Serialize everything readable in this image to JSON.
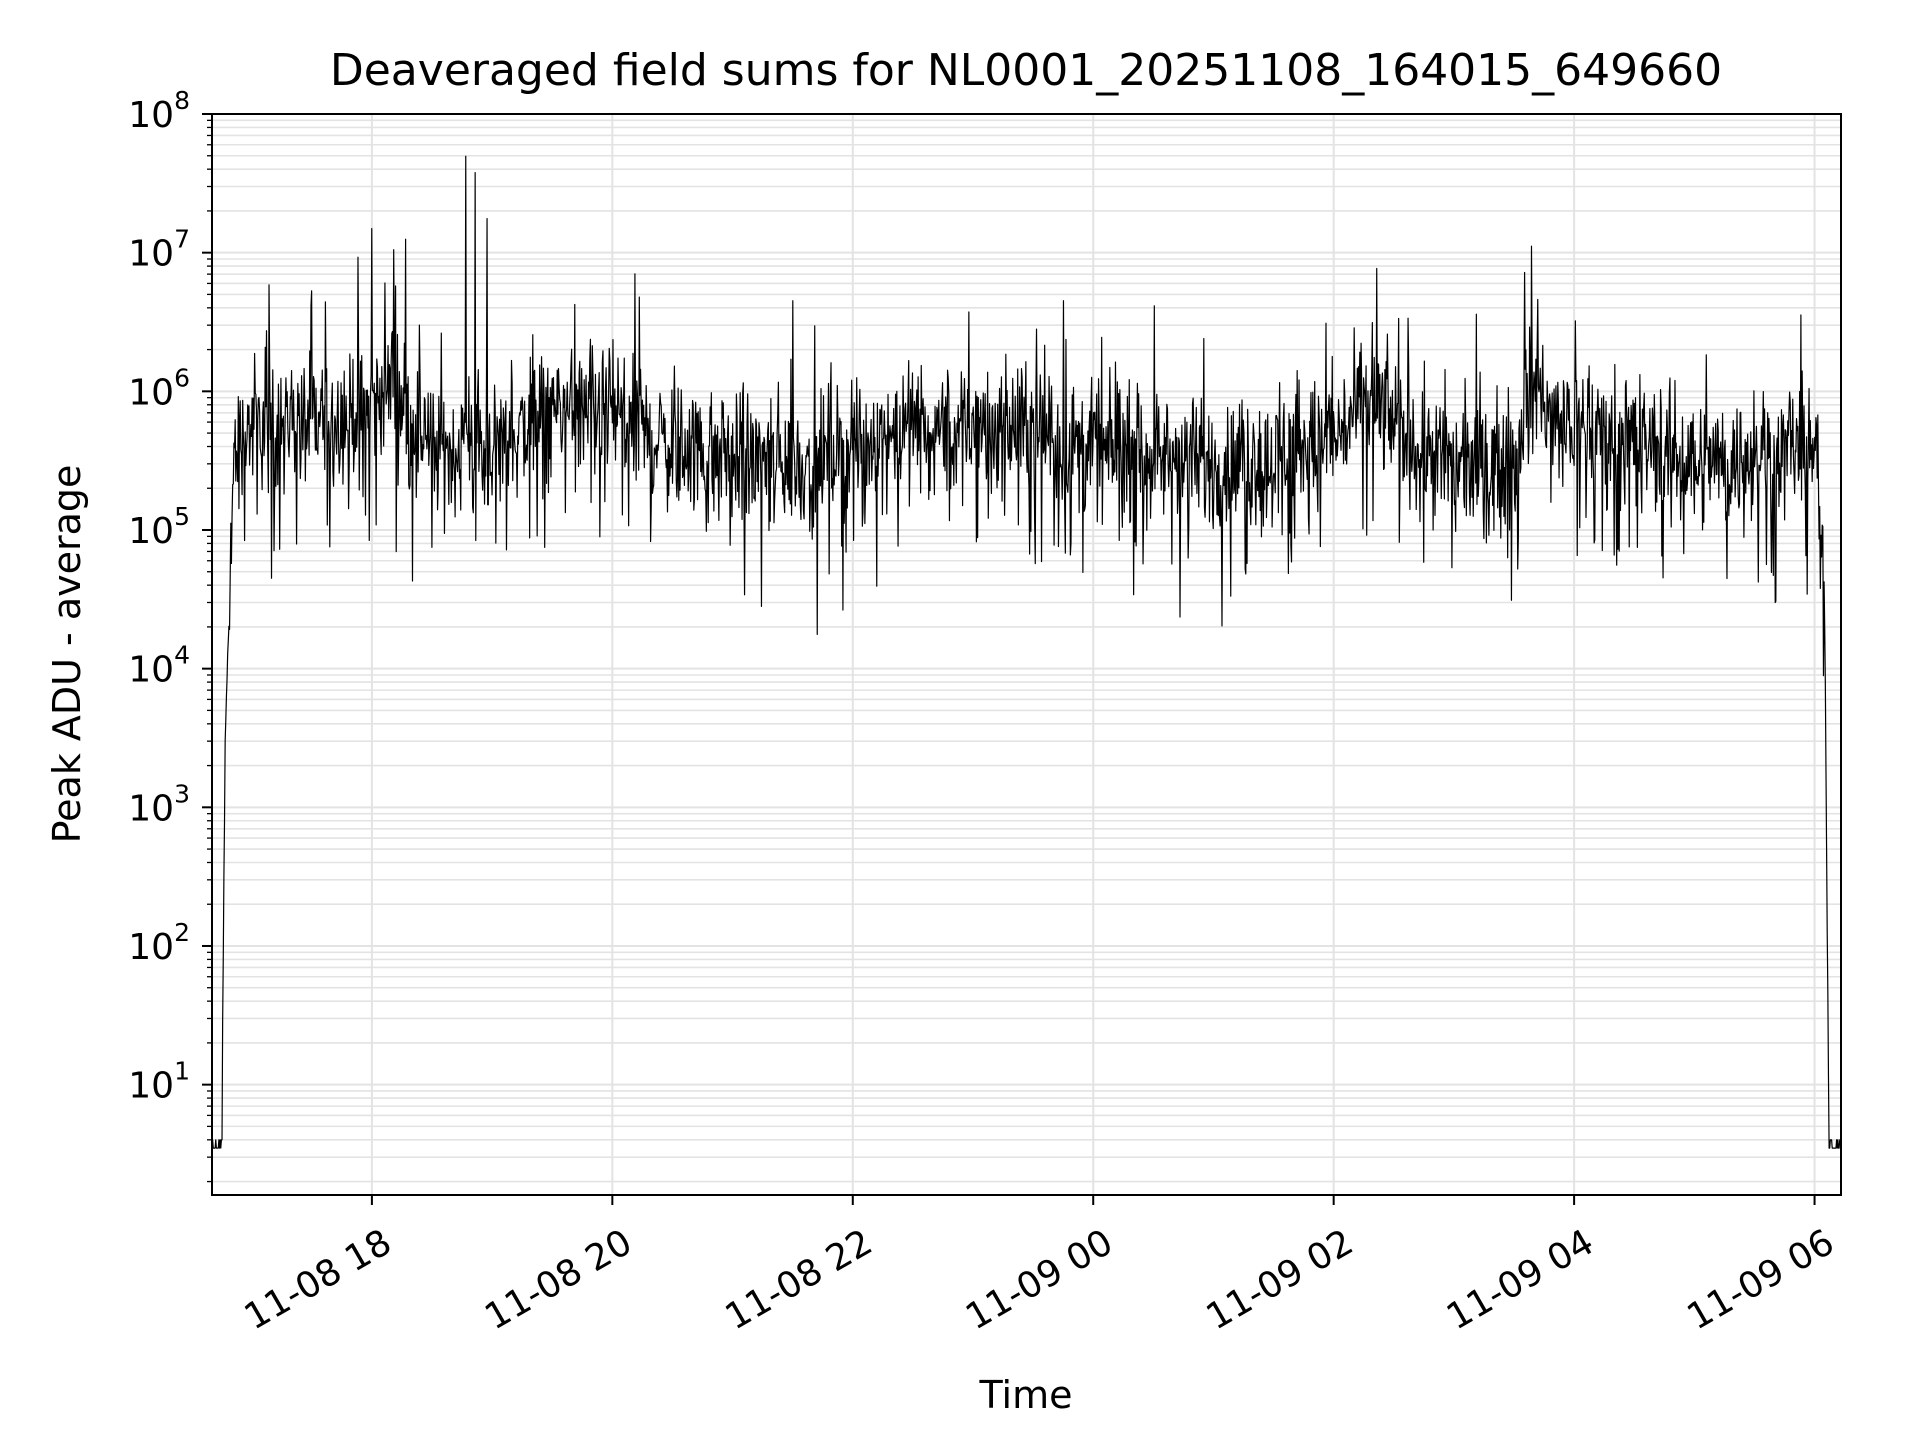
{
  "chart_data": {
    "type": "line",
    "title": "Deaveraged field sums for NL0001_20251108_164015_649660",
    "xlabel": "Time",
    "ylabel": "Peak ADU - average",
    "yscale": "log",
    "ylim": [
      1.6,
      100000000
    ],
    "xlim_hours": [
      16.67,
      30.22
    ],
    "x_ticks": [
      {
        "hour": 18,
        "label": "11-08 18"
      },
      {
        "hour": 20,
        "label": "11-08 20"
      },
      {
        "hour": 22,
        "label": "11-08 22"
      },
      {
        "hour": 24,
        "label": "11-09 00"
      },
      {
        "hour": 26,
        "label": "11-09 02"
      },
      {
        "hour": 28,
        "label": "11-09 04"
      },
      {
        "hour": 30,
        "label": "11-09 06"
      }
    ],
    "y_ticks": [
      {
        "exp": 1,
        "base": "10",
        "sup": "1"
      },
      {
        "exp": 2,
        "base": "10",
        "sup": "2"
      },
      {
        "exp": 3,
        "base": "10",
        "sup": "3"
      },
      {
        "exp": 4,
        "base": "10",
        "sup": "4"
      },
      {
        "exp": 5,
        "base": "10",
        "sup": "5"
      },
      {
        "exp": 6,
        "base": "10",
        "sup": "6"
      },
      {
        "exp": 7,
        "base": "10",
        "sup": "7"
      },
      {
        "exp": 8,
        "base": "10",
        "sup": "8"
      }
    ],
    "grid": true,
    "series": [
      {
        "name": "deaveraged field sum",
        "color": "#000000",
        "baseline_log10_profile": [
          [
            16.67,
            0.6
          ],
          [
            16.75,
            0.6
          ],
          [
            16.78,
            3.5
          ],
          [
            16.85,
            5.5
          ],
          [
            17.0,
            5.75
          ],
          [
            17.5,
            5.75
          ],
          [
            18.0,
            5.9
          ],
          [
            18.2,
            6.05
          ],
          [
            18.5,
            5.55
          ],
          [
            19.0,
            5.6
          ],
          [
            19.5,
            5.85
          ],
          [
            20.0,
            5.8
          ],
          [
            20.5,
            5.6
          ],
          [
            21.0,
            5.5
          ],
          [
            21.5,
            5.45
          ],
          [
            22.0,
            5.6
          ],
          [
            22.5,
            5.75
          ],
          [
            23.0,
            5.7
          ],
          [
            23.5,
            5.75
          ],
          [
            24.0,
            5.55
          ],
          [
            24.5,
            5.55
          ],
          [
            25.0,
            5.45
          ],
          [
            25.5,
            5.5
          ],
          [
            26.0,
            5.65
          ],
          [
            26.3,
            5.95
          ],
          [
            26.6,
            5.7
          ],
          [
            27.0,
            5.45
          ],
          [
            27.5,
            5.5
          ],
          [
            27.6,
            6.0
          ],
          [
            28.0,
            5.75
          ],
          [
            28.5,
            5.65
          ],
          [
            29.0,
            5.5
          ],
          [
            29.5,
            5.5
          ],
          [
            29.8,
            5.6
          ],
          [
            30.0,
            5.55
          ],
          [
            30.08,
            4.8
          ],
          [
            30.12,
            0.6
          ],
          [
            30.22,
            0.6
          ]
        ],
        "noise_log10_amplitude": 0.45,
        "spikes": [
          {
            "hour": 17.5,
            "value": 5300000
          },
          {
            "hour": 18.0,
            "value": 14900000
          },
          {
            "hour": 18.18,
            "value": 10500000
          },
          {
            "hour": 18.28,
            "value": 12500000
          },
          {
            "hour": 18.78,
            "value": 49600000
          },
          {
            "hour": 18.86,
            "value": 37800000
          },
          {
            "hour": 18.96,
            "value": 17600000
          },
          {
            "hour": 21.5,
            "value": 4500000
          },
          {
            "hour": 23.75,
            "value": 4500000
          },
          {
            "hour": 27.7,
            "value": 4600000
          }
        ],
        "floor_value": 4,
        "min_value": 2.6
      }
    ]
  }
}
